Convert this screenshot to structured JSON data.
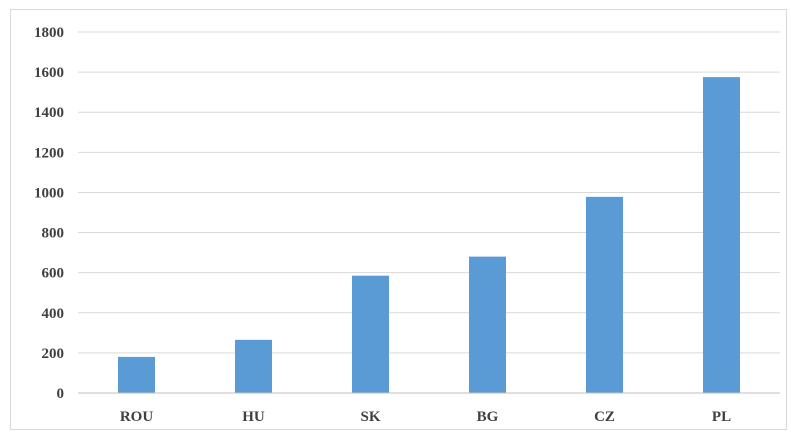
{
  "chart_data": {
    "type": "bar",
    "title": "",
    "xlabel": "",
    "ylabel": "",
    "categories": [
      "ROU",
      "HU",
      "SK",
      "BG",
      "CZ",
      "PL"
    ],
    "values": [
      180,
      265,
      585,
      680,
      978,
      1575
    ],
    "ylim": [
      0,
      1800
    ],
    "yticks": [
      "0",
      "200",
      "400",
      "600",
      "800",
      "1000",
      "1200",
      "1400",
      "1600",
      "1800"
    ],
    "grid": true,
    "legend": "none",
    "colors": {
      "bar": "#5b9bd5",
      "grid": "#d9d9d9",
      "axis": "#bfbfbf",
      "text": "#404040"
    }
  }
}
